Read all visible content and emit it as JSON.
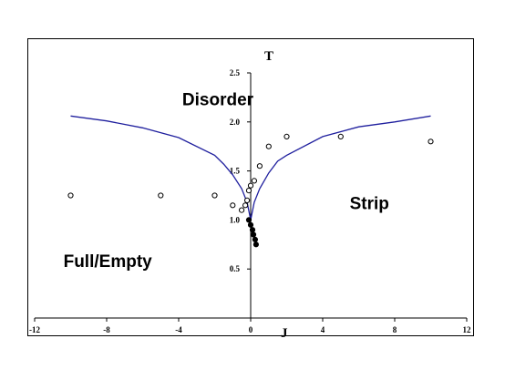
{
  "chart_data": {
    "type": "scatter",
    "xlabel": "J",
    "ylabel": "T",
    "xlim": [
      -12,
      12
    ],
    "ylim": [
      0,
      2.5
    ],
    "x_ticks": [
      -12,
      -8,
      -4,
      0,
      4,
      8,
      12
    ],
    "y_ticks": [
      0.5,
      1.0,
      1.5,
      2.0,
      2.5
    ],
    "x_tick_labels": [
      "-12",
      "-8",
      "-4",
      "0",
      "4",
      "8",
      "12"
    ],
    "y_tick_labels": [
      "0.5",
      "1.0",
      "1.5",
      "2.0",
      "2.5"
    ],
    "grid": false,
    "legend": false,
    "series": [
      {
        "type": "line",
        "color": "#1f1f9e",
        "x": [
          -10,
          -8,
          -6,
          -4,
          -2,
          -1.5,
          -1,
          -0.5,
          -0.2,
          0,
          0.2,
          0.5,
          1,
          1.5,
          2,
          4,
          6,
          8,
          10
        ],
        "y": [
          2.06,
          2.01,
          1.94,
          1.84,
          1.66,
          1.57,
          1.46,
          1.32,
          1.18,
          1.0,
          1.18,
          1.32,
          1.48,
          1.6,
          1.66,
          1.85,
          1.95,
          2.0,
          2.06
        ]
      },
      {
        "type": "scatter",
        "marker": "open-circle",
        "x": [
          -10,
          -5,
          -2,
          -1,
          -0.5,
          -0.3,
          -0.2,
          -0.1,
          0,
          0.2,
          0.5,
          1,
          2,
          5,
          10
        ],
        "y": [
          1.25,
          1.25,
          1.25,
          1.15,
          1.1,
          1.15,
          1.2,
          1.3,
          1.35,
          1.4,
          1.55,
          1.75,
          1.85,
          1.85,
          1.8
        ]
      },
      {
        "type": "scatter",
        "marker": "filled-circle",
        "x": [
          -0.1,
          0,
          0.1,
          0.15,
          0.25,
          0.3
        ],
        "y": [
          1.0,
          0.95,
          0.9,
          0.85,
          0.8,
          0.75
        ]
      }
    ],
    "annotations": [
      {
        "text": "Disorder",
        "x": -3.8,
        "y": 2.17
      },
      {
        "text": "Strip",
        "x": 5.5,
        "y": 1.11
      },
      {
        "text": "Full/Empty",
        "x": -10.4,
        "y": 0.52
      }
    ]
  }
}
